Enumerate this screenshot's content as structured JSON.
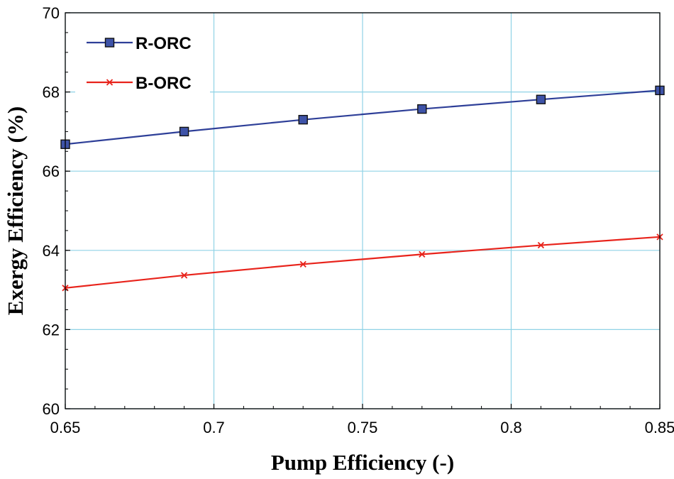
{
  "chart_data": {
    "type": "line",
    "title": "",
    "xlabel": "Pump Efficiency (-)",
    "ylabel": "Exergy Efficiency (%)",
    "xlim": [
      0.65,
      0.85
    ],
    "ylim": [
      60,
      70
    ],
    "xticks": [
      0.65,
      0.7,
      0.75,
      0.8,
      0.85
    ],
    "xtick_labels": [
      "0.65",
      "0.7",
      "0.75",
      "0.8",
      "0.85"
    ],
    "yticks": [
      60,
      62,
      64,
      66,
      68,
      70
    ],
    "ytick_labels": [
      "60",
      "62",
      "64",
      "66",
      "68",
      "70"
    ],
    "grid": true,
    "legend_position": "top-left",
    "x": [
      0.65,
      0.69,
      0.73,
      0.77,
      0.81,
      0.85
    ],
    "series": [
      {
        "name": "R-ORC",
        "color": "#2e3f98",
        "marker": "square",
        "values": [
          66.68,
          67.0,
          67.3,
          67.57,
          67.81,
          68.04
        ]
      },
      {
        "name": "B-ORC",
        "color": "#e8231b",
        "marker": "x",
        "values": [
          63.05,
          63.37,
          63.65,
          63.9,
          64.13,
          64.34
        ]
      }
    ]
  }
}
